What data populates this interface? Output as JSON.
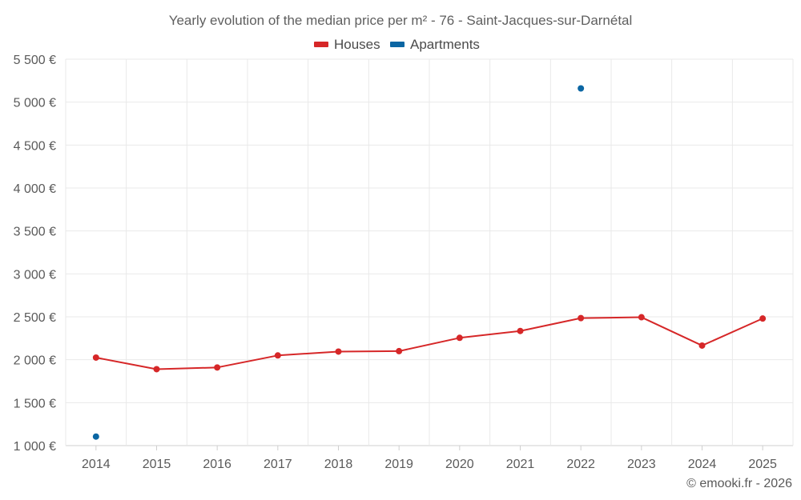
{
  "chart_data": {
    "type": "line",
    "title": "Yearly evolution of the median price per m² - 76 - Saint-Jacques-sur-Darnétal",
    "categories": [
      "2014",
      "2015",
      "2016",
      "2017",
      "2018",
      "2019",
      "2020",
      "2021",
      "2022",
      "2023",
      "2024",
      "2025"
    ],
    "y_ticks": [
      "1 000 €",
      "1 500 €",
      "2 000 €",
      "2 500 €",
      "3 000 €",
      "3 500 €",
      "4 000 €",
      "4 500 €",
      "5 000 €",
      "5 500 €"
    ],
    "y_tick_values": [
      1000,
      1500,
      2000,
      2500,
      3000,
      3500,
      4000,
      4500,
      5000,
      5500
    ],
    "ylim": [
      1000,
      5500
    ],
    "grid": true,
    "legend_position": "top-center",
    "series": [
      {
        "name": "Houses",
        "color": "#d62728",
        "connected": true,
        "values": [
          2025,
          1890,
          1910,
          2050,
          2095,
          2100,
          2255,
          2335,
          2485,
          2495,
          2165,
          2480
        ]
      },
      {
        "name": "Apartments",
        "color": "#0b66a3",
        "connected": false,
        "values": [
          1105,
          null,
          null,
          null,
          null,
          null,
          null,
          null,
          5160,
          null,
          null,
          null
        ]
      }
    ]
  },
  "credit": "© emooki.fr - 2026"
}
